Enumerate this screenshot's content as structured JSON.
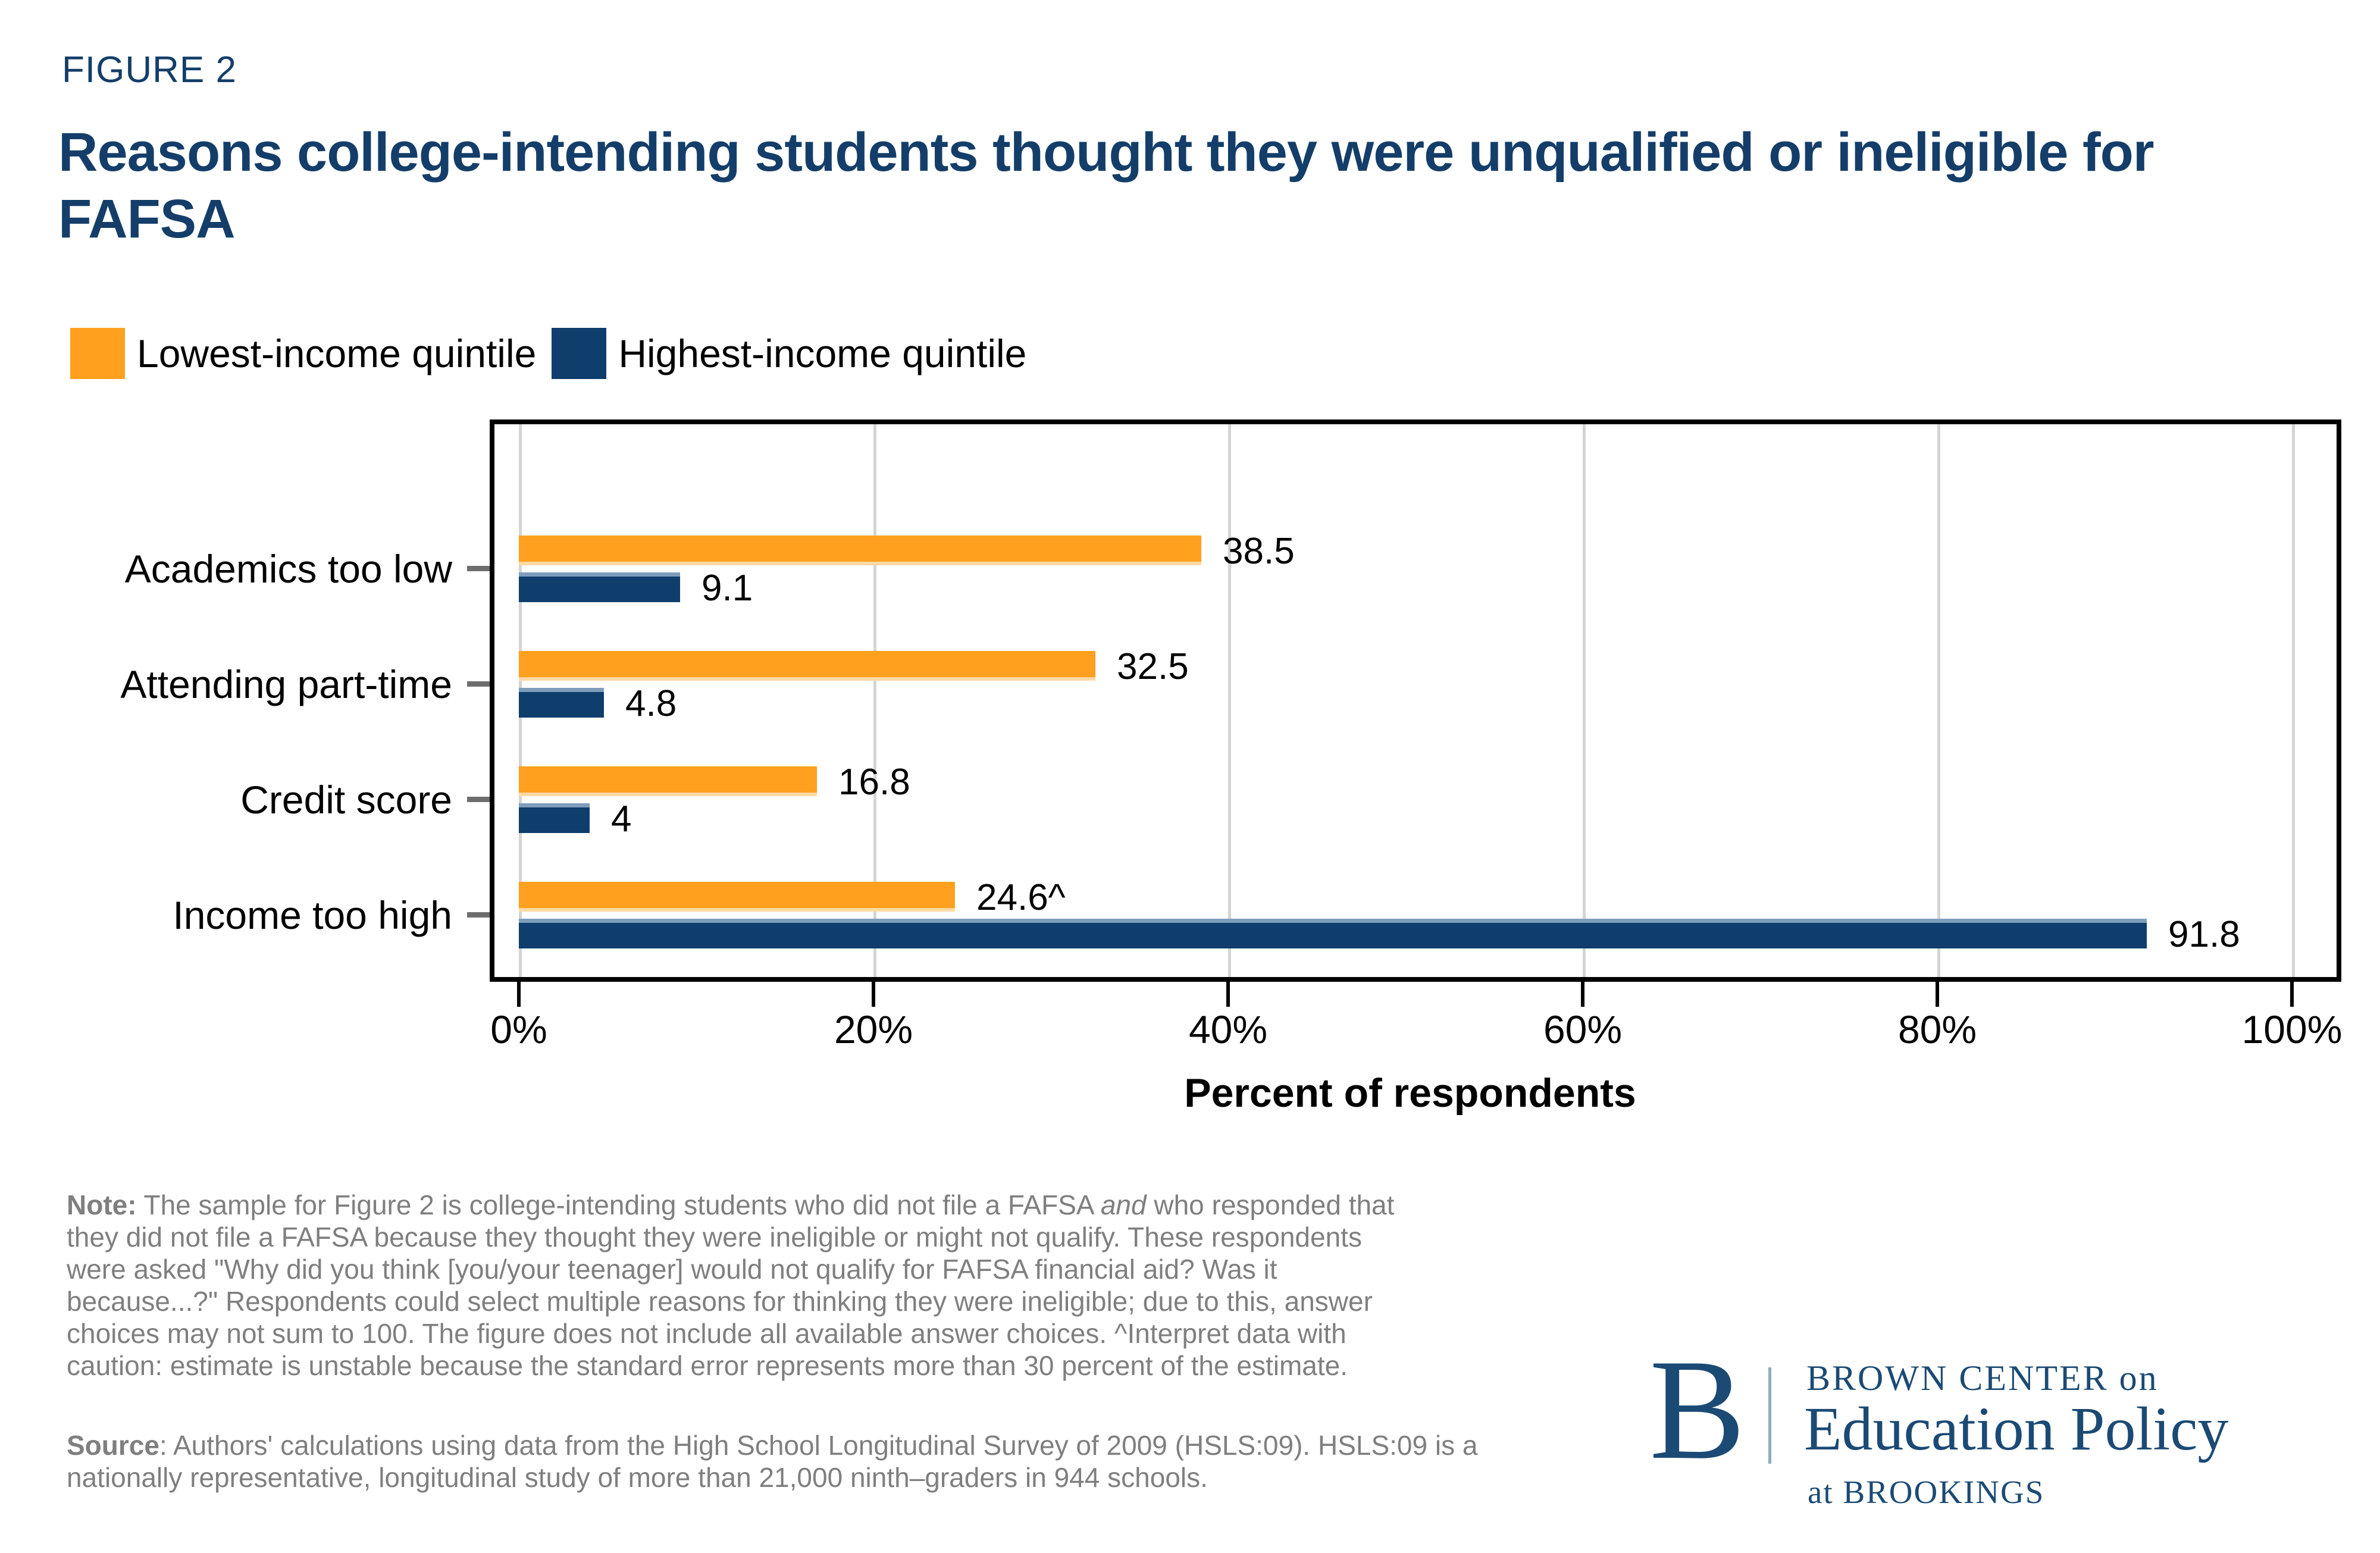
{
  "figure_label": "FIGURE 2",
  "title": "Reasons college-intending students thought they were unqualified or ineligible for FAFSA",
  "colors": {
    "orange": "#FFA01E",
    "navy": "#0F3D6C",
    "title_navy": "#143E69",
    "note_gray": "#7F7F7F",
    "grid_gray": "#D4D4D4",
    "logo_navy": "#1B4A74"
  },
  "legend": [
    {
      "label": "Lowest-income quintile",
      "color": "#FFA01E"
    },
    {
      "label": "Highest-income quintile",
      "color": "#0F3D6C"
    }
  ],
  "chart_data": {
    "type": "bar",
    "orientation": "horizontal",
    "title": "Reasons college-intending students thought they were unqualified or ineligible for FAFSA",
    "categories": [
      "Academics too low",
      "Attending part-time",
      "Credit score",
      "Income too high"
    ],
    "series": [
      {
        "name": "Lowest-income quintile",
        "color": "#FFA01E",
        "values": [
          38.5,
          32.5,
          16.8,
          24.6
        ],
        "labels": [
          "38.5",
          "32.5",
          "16.8",
          "24.6^"
        ]
      },
      {
        "name": "Highest-income quintile",
        "color": "#0F3D6C",
        "values": [
          9.1,
          4.8,
          4,
          91.8
        ],
        "labels": [
          "9.1",
          "4.8",
          "4",
          "91.8"
        ]
      }
    ],
    "xlabel": "Percent of respondents",
    "ylabel": "",
    "xlim": [
      0,
      100
    ],
    "xticks": [
      "0%",
      "20%",
      "40%",
      "60%",
      "80%",
      "100%"
    ],
    "grid": "vertical",
    "legend_position": "top-left"
  },
  "note": {
    "parts": [
      {
        "t": "Note:",
        "b": true
      },
      {
        "t": " The sample for Figure 2 is college-intending students who did not file a FAFSA "
      },
      {
        "t": "and",
        "i": true
      },
      {
        "t": " who responded that they did not file a FAFSA because they thought they were ineligible or might not qualify. These respondents were asked \"Why did you think [you/your teenager] would not qualify for FAFSA financial aid? Was it because...?\" Respondents could select multiple reasons for thinking they were ineligible; due to this, answer choices may not sum to 100. The figure does not include all available answer choices. ^Interpret data with caution: estimate is unstable because the standard error represents more than 30 percent of the estimate."
      }
    ]
  },
  "source": {
    "parts": [
      {
        "t": "Source",
        "b": true
      },
      {
        "t": ": Authors' calculations using data from the High School Longitudinal Survey of 2009 (HSLS:09). HSLS:09 is a nationally representative, longitudinal study of more than 21,000 ninth–graders in 944 schools."
      }
    ]
  },
  "logo": {
    "monogram": "B",
    "line1": "BROWN CENTER on",
    "line2": "Education Policy",
    "line3": "at BROOKINGS"
  }
}
